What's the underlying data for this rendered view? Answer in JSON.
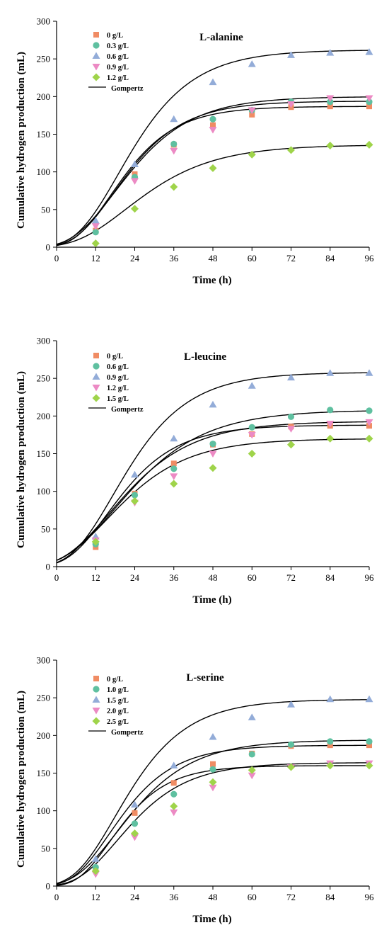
{
  "chart_data": [
    {
      "type": "scatter",
      "title": "L-alanine",
      "xlabel": "Time (h)",
      "ylabel": "Cumulative hydrogen production (mL)",
      "xlim": [
        0,
        96
      ],
      "ylim": [
        0,
        300
      ],
      "xticks": [
        0,
        12,
        24,
        36,
        48,
        60,
        72,
        84,
        96
      ],
      "yticks": [
        0,
        50,
        100,
        150,
        200,
        250,
        300
      ],
      "grid": false,
      "legend_position": "top-left",
      "x": [
        12,
        24,
        36,
        48,
        60,
        72,
        84,
        96
      ],
      "series": [
        {
          "name": "0 g/L",
          "marker": "square",
          "color": "#f08c64",
          "values": [
            22,
            97,
            136,
            162,
            176,
            186,
            187,
            187
          ],
          "fit": {
            "P": 187,
            "Rm": 6.2,
            "lambda": 5.5
          }
        },
        {
          "name": "0.3 g/L",
          "marker": "circle",
          "color": "#5fc0a0",
          "values": [
            20,
            93,
            137,
            170,
            182,
            193,
            193,
            193
          ],
          "fit": {
            "P": 194,
            "Rm": 6.0,
            "lambda": 5.5
          }
        },
        {
          "name": "0.6 g/L",
          "marker": "triangle-up",
          "color": "#93acd8",
          "values": [
            35,
            110,
            170,
            219,
            243,
            255,
            258,
            259
          ],
          "fit": {
            "P": 262,
            "Rm": 7.5,
            "lambda": 6.0
          }
        },
        {
          "name": "0.9 g/L",
          "marker": "triangle-down",
          "color": "#ec8ac4",
          "values": [
            28,
            88,
            128,
            156,
            182,
            190,
            198,
            198
          ],
          "fit": {
            "P": 200,
            "Rm": 5.6,
            "lambda": 4.8
          }
        },
        {
          "name": "1.2 g/L",
          "marker": "diamond",
          "color": "#9fd44a",
          "values": [
            5,
            51,
            80,
            105,
            123,
            129,
            135,
            136
          ],
          "fit": {
            "P": 136,
            "Rm": 3.3,
            "lambda": 6.0
          }
        }
      ],
      "fit_label": "Gompertz"
    },
    {
      "type": "scatter",
      "title": "L-leucine",
      "xlabel": "Time (h)",
      "ylabel": "Cumulative hydrogen production (mL)",
      "xlim": [
        0,
        96
      ],
      "ylim": [
        0,
        300
      ],
      "xticks": [
        0,
        12,
        24,
        36,
        48,
        60,
        72,
        84,
        96
      ],
      "yticks": [
        0,
        50,
        100,
        150,
        200,
        250,
        300
      ],
      "grid": false,
      "legend_position": "top-left",
      "x": [
        12,
        24,
        36,
        48,
        60,
        72,
        84,
        96
      ],
      "series": [
        {
          "name": "0 g/L",
          "marker": "square",
          "color": "#f08c64",
          "values": [
            26,
            97,
            137,
            162,
            176,
            186,
            187,
            187
          ],
          "fit": {
            "P": 188,
            "Rm": 5.8,
            "lambda": 3.5
          }
        },
        {
          "name": "0.6 g/L",
          "marker": "circle",
          "color": "#5fc0a0",
          "values": [
            30,
            95,
            130,
            163,
            185,
            199,
            208,
            207
          ],
          "fit": {
            "P": 208,
            "Rm": 5.0,
            "lambda": 2.5
          }
        },
        {
          "name": "0.9 g/L",
          "marker": "triangle-up",
          "color": "#93acd8",
          "values": [
            40,
            122,
            170,
            215,
            240,
            251,
            257,
            257
          ],
          "fit": {
            "P": 258,
            "Rm": 7.4,
            "lambda": 4.5
          }
        },
        {
          "name": "1.2 g/L",
          "marker": "triangle-down",
          "color": "#ec8ac4",
          "values": [
            35,
            85,
            120,
            150,
            175,
            183,
            190,
            192
          ],
          "fit": {
            "P": 193,
            "Rm": 5.0,
            "lambda": 2.0
          }
        },
        {
          "name": "1.5 g/L",
          "marker": "diamond",
          "color": "#9fd44a",
          "values": [
            33,
            87,
            110,
            131,
            150,
            162,
            170,
            170
          ],
          "fit": {
            "P": 170,
            "Rm": 4.5,
            "lambda": 1.5
          }
        }
      ],
      "fit_label": "Gompertz"
    },
    {
      "type": "scatter",
      "title": "L-serine",
      "xlabel": "Time (h)",
      "ylabel": "Cumulative hydrogen production (mL)",
      "xlim": [
        0,
        96
      ],
      "ylim": [
        0,
        300
      ],
      "xticks": [
        0,
        12,
        24,
        36,
        48,
        60,
        72,
        84,
        96
      ],
      "yticks": [
        0,
        50,
        100,
        150,
        200,
        250,
        300
      ],
      "grid": false,
      "legend_position": "top-left",
      "x": [
        12,
        24,
        36,
        48,
        60,
        72,
        84,
        96
      ],
      "series": [
        {
          "name": "0 g/L",
          "marker": "square",
          "color": "#f08c64",
          "values": [
            22,
            97,
            137,
            162,
            176,
            186,
            187,
            187
          ],
          "fit": {
            "P": 187,
            "Rm": 6.2,
            "lambda": 5.0
          }
        },
        {
          "name": "1.0 g/L",
          "marker": "circle",
          "color": "#5fc0a0",
          "values": [
            25,
            83,
            122,
            155,
            175,
            188,
            192,
            192
          ],
          "fit": {
            "P": 194,
            "Rm": 5.5,
            "lambda": 5.5
          }
        },
        {
          "name": "1.5 g/L",
          "marker": "triangle-up",
          "color": "#93acd8",
          "values": [
            36,
            108,
            160,
            198,
            224,
            241,
            248,
            248
          ],
          "fit": {
            "P": 248,
            "Rm": 7.4,
            "lambda": 5.5
          }
        },
        {
          "name": "2.0 g/L",
          "marker": "triangle-down",
          "color": "#ec8ac4",
          "values": [
            16,
            65,
            98,
            131,
            147,
            158,
            163,
            163
          ],
          "fit": {
            "P": 164,
            "Rm": 5.0,
            "lambda": 6.5
          }
        },
        {
          "name": "2.5 g/L",
          "marker": "diamond",
          "color": "#9fd44a",
          "values": [
            20,
            70,
            106,
            138,
            154,
            158,
            160,
            160
          ],
          "fit": {
            "P": 160,
            "Rm": 6.0,
            "lambda": 6.5
          }
        }
      ],
      "fit_label": "Gompertz"
    }
  ]
}
